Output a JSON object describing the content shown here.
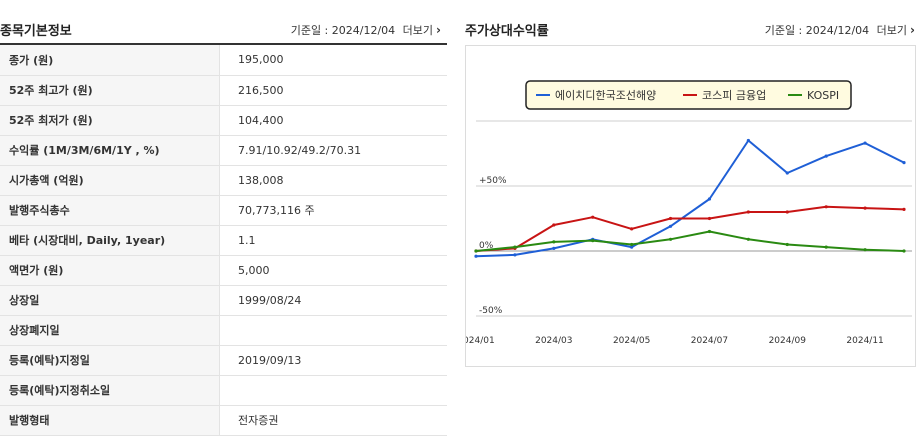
{
  "left": {
    "title": "종목기본정보",
    "date_label": "기준일 : 2024/12/04",
    "more_label": "더보기",
    "rows": [
      {
        "label": "종가 (원)",
        "value": "195,000"
      },
      {
        "label": "52주 최고가 (원)",
        "value": "216,500"
      },
      {
        "label": "52주 최저가 (원)",
        "value": "104,400"
      },
      {
        "label": "수익률 (1M/3M/6M/1Y , %)",
        "value": "7.91/10.92/49.2/70.31"
      },
      {
        "label": "시가총액 (억원)",
        "value": "138,008"
      },
      {
        "label": "발행주식총수",
        "value": "70,773,116 주"
      },
      {
        "label": "베타 (시장대비, Daily, 1year)",
        "value": "1.1"
      },
      {
        "label": "액면가 (원)",
        "value": "5,000"
      },
      {
        "label": "상장일",
        "value": "1999/08/24"
      },
      {
        "label": "상장폐지일",
        "value": ""
      },
      {
        "label": "등록(예탁)지정일",
        "value": "2019/09/13"
      },
      {
        "label": "등록(예탁)지정취소일",
        "value": ""
      },
      {
        "label": "발행형태",
        "value": "전자증권"
      }
    ]
  },
  "right": {
    "title": "주가상대수익률",
    "date_label": "기준일 : 2024/12/04",
    "more_label": "더보기"
  },
  "colors": {
    "series1": "#1f5fd6",
    "series2": "#c81414",
    "series3": "#2a8a12",
    "legend_bg": "#fffbe0"
  },
  "chart_data": {
    "type": "line",
    "x": [
      "2024/01",
      "2024/02",
      "2024/03",
      "2024/04",
      "2024/05",
      "2024/06",
      "2024/07",
      "2024/08",
      "2024/09",
      "2024/10",
      "2024/11",
      "2024/12"
    ],
    "x_tick_labels": [
      "2024/01",
      "2024/03",
      "2024/05",
      "2024/07",
      "2024/09",
      "2024/11"
    ],
    "y_tick_labels": [
      "+50%",
      "0%",
      "-50%"
    ],
    "ylim": [
      -50,
      100
    ],
    "legend_position": "top-center",
    "series": [
      {
        "name": "에이치디한국조선해양",
        "values": [
          -4,
          -3,
          2,
          9,
          3,
          19,
          40,
          85,
          60,
          73,
          83,
          68
        ]
      },
      {
        "name": "코스피 금융업",
        "values": [
          0,
          2,
          20,
          26,
          17,
          25,
          25,
          30,
          30,
          34,
          33,
          32
        ]
      },
      {
        "name": "KOSPI",
        "values": [
          0,
          3,
          7,
          8,
          5,
          9,
          15,
          9,
          5,
          3,
          1,
          0
        ]
      }
    ]
  }
}
